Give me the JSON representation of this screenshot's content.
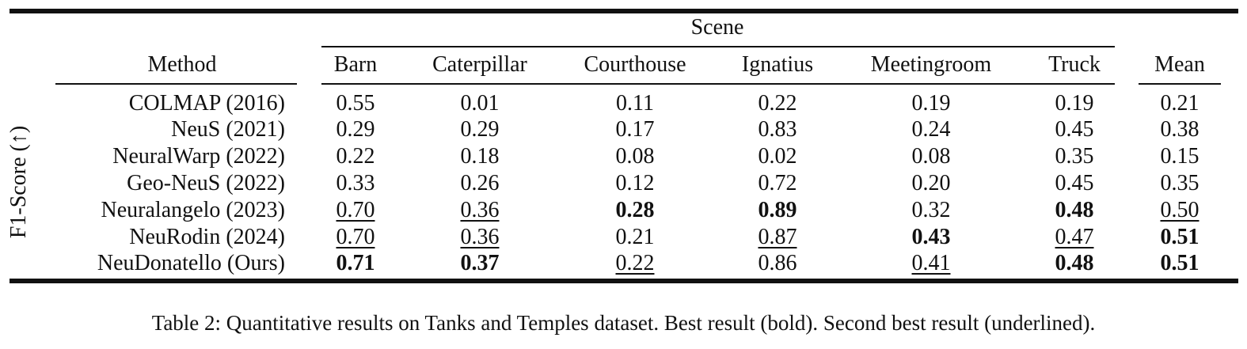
{
  "table": {
    "scene_header": "Scene",
    "method_header": "Method",
    "y_label": "F1-Score (↑)",
    "columns": [
      "Barn",
      "Caterpillar",
      "Courthouse",
      "Ignatius",
      "Meetingroom",
      "Truck",
      "Mean"
    ],
    "rows": [
      {
        "method": "COLMAP (2016)",
        "values": [
          "0.55",
          "0.01",
          "0.11",
          "0.22",
          "0.19",
          "0.19",
          "0.21"
        ],
        "styles": [
          "",
          "",
          "",
          "",
          "",
          "",
          ""
        ]
      },
      {
        "method": "NeuS (2021)",
        "values": [
          "0.29",
          "0.29",
          "0.17",
          "0.83",
          "0.24",
          "0.45",
          "0.38"
        ],
        "styles": [
          "",
          "",
          "",
          "",
          "",
          "",
          ""
        ]
      },
      {
        "method": "NeuralWarp (2022)",
        "values": [
          "0.22",
          "0.18",
          "0.08",
          "0.02",
          "0.08",
          "0.35",
          "0.15"
        ],
        "styles": [
          "",
          "",
          "",
          "",
          "",
          "",
          ""
        ]
      },
      {
        "method": "Geo-NeuS (2022)",
        "values": [
          "0.33",
          "0.26",
          "0.12",
          "0.72",
          "0.20",
          "0.45",
          "0.35"
        ],
        "styles": [
          "",
          "",
          "",
          "",
          "",
          "",
          ""
        ]
      },
      {
        "method": "Neuralangelo (2023)",
        "values": [
          "0.70",
          "0.36",
          "0.28",
          "0.89",
          "0.32",
          "0.48",
          "0.50"
        ],
        "styles": [
          "underline",
          "underline",
          "bold",
          "bold",
          "",
          "bold",
          "underline"
        ]
      },
      {
        "method": "NeuRodin (2024)",
        "values": [
          "0.70",
          "0.36",
          "0.21",
          "0.87",
          "0.43",
          "0.47",
          "0.51"
        ],
        "styles": [
          "underline",
          "underline",
          "",
          "underline",
          "bold",
          "underline",
          "bold"
        ]
      },
      {
        "method": "NeuDonatello (Ours)",
        "values": [
          "0.71",
          "0.37",
          "0.22",
          "0.86",
          "0.41",
          "0.48",
          "0.51"
        ],
        "styles": [
          "bold",
          "bold",
          "underline",
          "",
          "underline",
          "bold",
          "bold"
        ]
      }
    ]
  },
  "caption": "Table 2: Quantitative results on Tanks and Temples dataset. Best result (bold). Second best result (underlined)."
}
